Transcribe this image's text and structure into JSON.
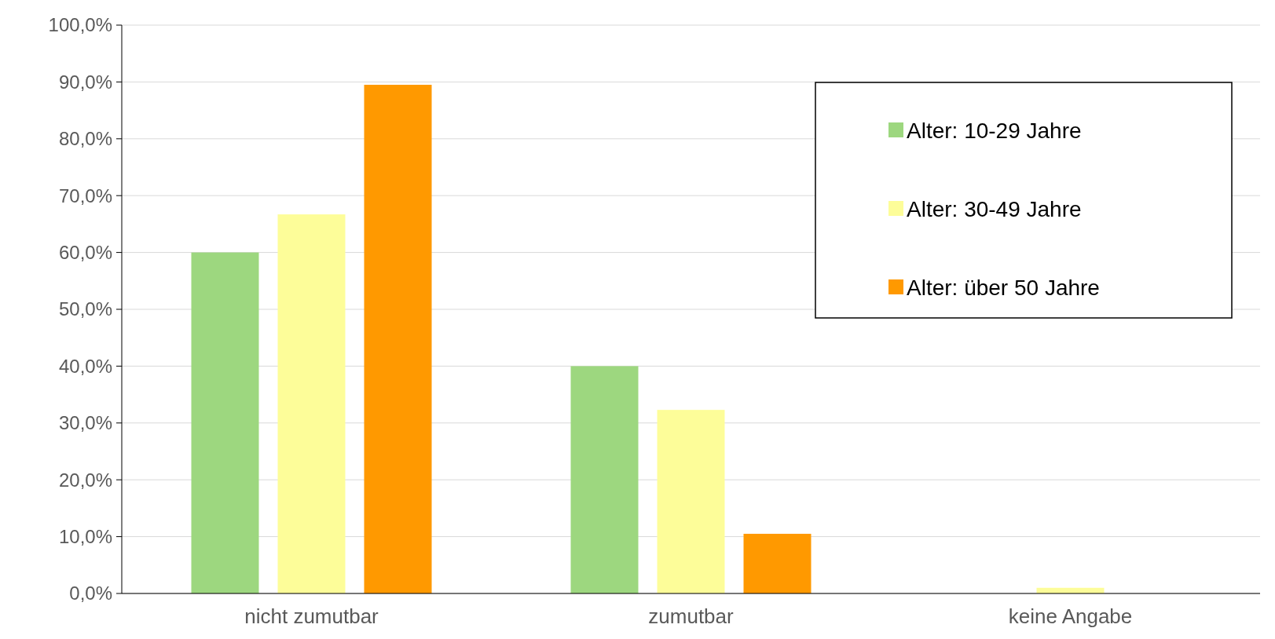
{
  "chart_data": {
    "type": "bar",
    "categories": [
      "nicht zumutbar",
      "zumutbar",
      "keine Angabe"
    ],
    "series": [
      {
        "name": "Alter: 10-29 Jahre",
        "color": "#9dd77f",
        "values": [
          60.0,
          40.0,
          0
        ]
      },
      {
        "name": "Alter: 30-49 Jahre",
        "color": "#fdfd99",
        "values": [
          66.7,
          32.3,
          1.0
        ]
      },
      {
        "name": "Alter: über 50 Jahre",
        "color": "#ff9900",
        "values": [
          89.5,
          10.5,
          0
        ]
      }
    ],
    "ylim": [
      0,
      100
    ],
    "yticks": [
      {
        "value": 0,
        "label": "0,0%"
      },
      {
        "value": 10,
        "label": "10,0%"
      },
      {
        "value": 20,
        "label": "20,0%"
      },
      {
        "value": 30,
        "label": "30,0%"
      },
      {
        "value": 40,
        "label": "40,0%"
      },
      {
        "value": 50,
        "label": "50,0%"
      },
      {
        "value": 60,
        "label": "60,0%"
      },
      {
        "value": 70,
        "label": "70,0%"
      },
      {
        "value": 80,
        "label": "80,0%"
      },
      {
        "value": 90,
        "label": "90,0%"
      },
      {
        "value": 100,
        "label": "100,0%"
      }
    ],
    "grid": "y",
    "legend": "top right"
  }
}
